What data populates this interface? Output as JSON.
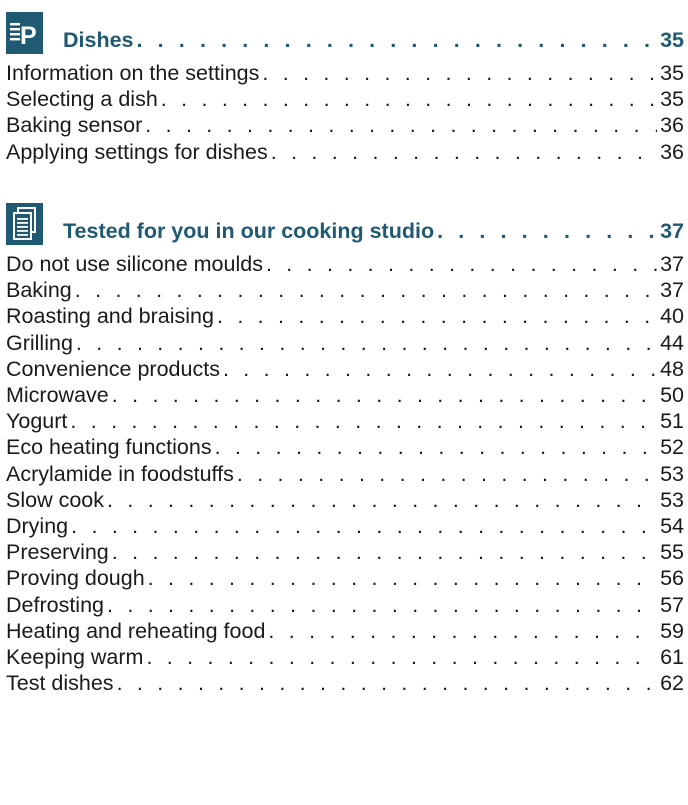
{
  "sections": [
    {
      "icon": "programme-p-icon",
      "icon_letter": "P",
      "title": "Dishes",
      "page": "35",
      "entries": [
        {
          "label": "Information on the settings",
          "page": "35"
        },
        {
          "label": "Selecting a dish",
          "page": "35"
        },
        {
          "label": "Baking sensor",
          "page": "36"
        },
        {
          "label": "Applying settings for dishes",
          "page": "36"
        }
      ]
    },
    {
      "icon": "document-pages-icon",
      "title": "Tested for you in our cooking studio",
      "page": "37",
      "entries": [
        {
          "label": "Do not use silicone moulds",
          "page": "37"
        },
        {
          "label": "Baking",
          "page": "37"
        },
        {
          "label": "Roasting and braising",
          "page": "40"
        },
        {
          "label": "Grilling",
          "page": "44"
        },
        {
          "label": "Convenience products",
          "page": "48"
        },
        {
          "label": "Microwave",
          "page": "50"
        },
        {
          "label": "Yogurt",
          "page": "51"
        },
        {
          "label": "Eco heating functions",
          "page": "52"
        },
        {
          "label": "Acrylamide in foodstuffs",
          "page": "53"
        },
        {
          "label": "Slow cook",
          "page": "53"
        },
        {
          "label": "Drying",
          "page": "54"
        },
        {
          "label": "Preserving",
          "page": "55"
        },
        {
          "label": "Proving dough",
          "page": "56"
        },
        {
          "label": "Defrosting",
          "page": "57"
        },
        {
          "label": "Heating and reheating food",
          "page": "59"
        },
        {
          "label": "Keeping warm",
          "page": "61"
        },
        {
          "label": "Test dishes",
          "page": "62"
        }
      ]
    }
  ],
  "colors": {
    "accent": "#1f5a72",
    "text": "#1a1a1a"
  }
}
